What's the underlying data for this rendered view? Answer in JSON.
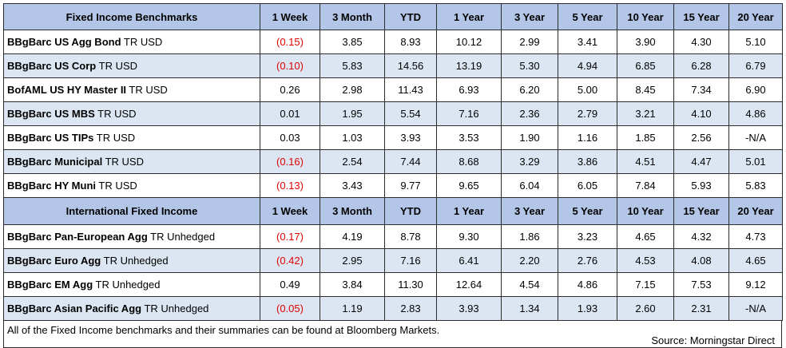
{
  "columns": [
    "1 Week",
    "3 Month",
    "YTD",
    "1 Year",
    "3 Year",
    "5 Year",
    "10 Year",
    "15 Year",
    "20 Year"
  ],
  "sections": [
    {
      "title": "Fixed Income Benchmarks",
      "rows": [
        {
          "bold": "BBgBarc US Agg Bond",
          "rest": " TR USD",
          "values": [
            "(0.15)",
            "3.85",
            "8.93",
            "10.12",
            "2.99",
            "3.41",
            "3.90",
            "4.30",
            "5.10"
          ]
        },
        {
          "bold": "BBgBarc US Corp",
          "rest": " TR USD",
          "values": [
            "(0.10)",
            "5.83",
            "14.56",
            "13.19",
            "5.30",
            "4.94",
            "6.85",
            "6.28",
            "6.79"
          ]
        },
        {
          "bold": "BofAML US HY Master II",
          "rest": " TR USD",
          "values": [
            "0.26",
            "2.98",
            "11.43",
            "6.93",
            "6.20",
            "5.00",
            "8.45",
            "7.34",
            "6.90"
          ]
        },
        {
          "bold": "BBgBarc US MBS",
          "rest": " TR USD",
          "values": [
            "0.01",
            "1.95",
            "5.54",
            "7.16",
            "2.36",
            "2.79",
            "3.21",
            "4.10",
            "4.86"
          ]
        },
        {
          "bold": "BBgBarc US TIPs",
          "rest": " TR USD",
          "values": [
            "0.03",
            "1.03",
            "3.93",
            "3.53",
            "1.90",
            "1.16",
            "1.85",
            "2.56",
            "-N/A"
          ]
        },
        {
          "bold": "BBgBarc Municipal",
          "rest": " TR USD",
          "values": [
            "(0.16)",
            "2.54",
            "7.44",
            "8.68",
            "3.29",
            "3.86",
            "4.51",
            "4.47",
            "5.01"
          ]
        },
        {
          "bold": "BBgBarc HY Muni",
          "rest": " TR USD",
          "values": [
            "(0.13)",
            "3.43",
            "9.77",
            "9.65",
            "6.04",
            "6.05",
            "7.84",
            "5.93",
            "5.83"
          ]
        }
      ]
    },
    {
      "title": "International Fixed Income",
      "rows": [
        {
          "bold": "BBgBarc Pan-European Agg",
          "rest": " TR Unhedged",
          "values": [
            "(0.17)",
            "4.19",
            "8.78",
            "9.30",
            "1.86",
            "3.23",
            "4.65",
            "4.32",
            "4.73"
          ]
        },
        {
          "bold": "BBgBarc Euro Agg",
          "rest": " TR Unhedged",
          "values": [
            "(0.42)",
            "2.95",
            "7.16",
            "6.41",
            "2.20",
            "2.76",
            "4.53",
            "4.08",
            "4.65"
          ]
        },
        {
          "bold": "BBgBarc EM Agg",
          "rest": " TR Unhedged",
          "values": [
            "0.49",
            "3.84",
            "11.30",
            "12.64",
            "4.54",
            "4.86",
            "7.15",
            "7.53",
            "9.12"
          ]
        },
        {
          "bold": "BBgBarc Asian Pacific Agg",
          "rest": " TR Unhedged",
          "values": [
            "(0.05)",
            "1.19",
            "2.83",
            "3.93",
            "1.34",
            "1.93",
            "2.60",
            "2.31",
            "-N/A"
          ]
        }
      ]
    }
  ],
  "footer": {
    "note": "All of the Fixed Income benchmarks and their summaries can be found at Bloomberg Markets.",
    "source": "Source: Morningstar Direct"
  },
  "colors": {
    "header_bg": "#b4c6e7",
    "shaded_row_bg": "#dce6f2",
    "negative_text": "#e00000"
  }
}
